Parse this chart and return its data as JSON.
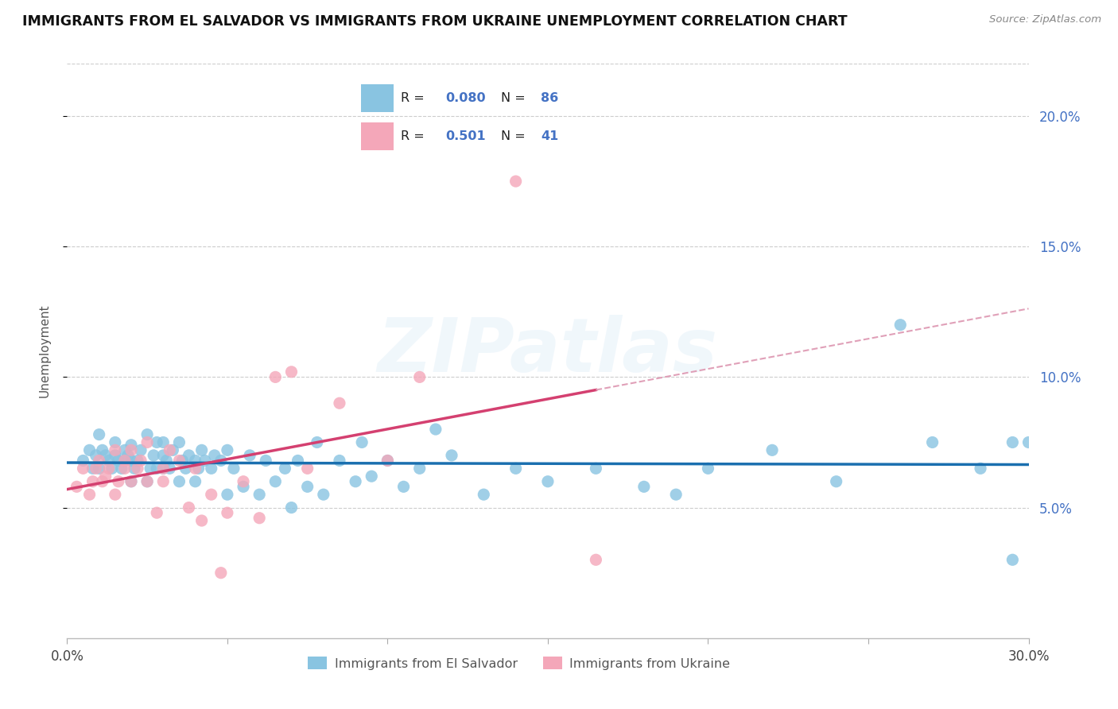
{
  "title": "IMMIGRANTS FROM EL SALVADOR VS IMMIGRANTS FROM UKRAINE UNEMPLOYMENT CORRELATION CHART",
  "source": "Source: ZipAtlas.com",
  "ylabel": "Unemployment",
  "xmin": 0.0,
  "xmax": 0.3,
  "ymin": 0.0,
  "ymax": 0.22,
  "yticks": [
    0.05,
    0.1,
    0.15,
    0.2
  ],
  "ytick_labels": [
    "5.0%",
    "10.0%",
    "15.0%",
    "20.0%"
  ],
  "xticks": [
    0.0,
    0.05,
    0.1,
    0.15,
    0.2,
    0.25,
    0.3
  ],
  "xtick_labels": [
    "0.0%",
    "",
    "",
    "",
    "",
    "",
    "30.0%"
  ],
  "legend_labels": [
    "Immigrants from El Salvador",
    "Immigrants from Ukraine"
  ],
  "el_salvador_R": "0.080",
  "el_salvador_N": "86",
  "ukraine_R": "0.501",
  "ukraine_N": "41",
  "color_salvador": "#89c4e1",
  "color_ukraine": "#f4a7b9",
  "color_salvador_line": "#1a6faf",
  "color_ukraine_line": "#d44070",
  "color_ukraine_line_ext": "#e0a0b8",
  "watermark": "ZIPatlas",
  "el_salvador_x": [
    0.005,
    0.007,
    0.008,
    0.009,
    0.01,
    0.01,
    0.011,
    0.012,
    0.013,
    0.014,
    0.015,
    0.015,
    0.016,
    0.017,
    0.018,
    0.018,
    0.019,
    0.02,
    0.02,
    0.02,
    0.021,
    0.022,
    0.023,
    0.025,
    0.025,
    0.026,
    0.027,
    0.028,
    0.028,
    0.03,
    0.03,
    0.03,
    0.031,
    0.032,
    0.033,
    0.035,
    0.035,
    0.036,
    0.037,
    0.038,
    0.04,
    0.04,
    0.041,
    0.042,
    0.043,
    0.045,
    0.046,
    0.048,
    0.05,
    0.05,
    0.052,
    0.055,
    0.057,
    0.06,
    0.062,
    0.065,
    0.068,
    0.07,
    0.072,
    0.075,
    0.078,
    0.08,
    0.085,
    0.09,
    0.092,
    0.095,
    0.1,
    0.105,
    0.11,
    0.115,
    0.12,
    0.13,
    0.14,
    0.15,
    0.165,
    0.18,
    0.19,
    0.2,
    0.22,
    0.24,
    0.26,
    0.27,
    0.285,
    0.295,
    0.295,
    0.3
  ],
  "el_salvador_y": [
    0.068,
    0.072,
    0.065,
    0.07,
    0.065,
    0.078,
    0.072,
    0.07,
    0.068,
    0.065,
    0.07,
    0.075,
    0.068,
    0.065,
    0.072,
    0.068,
    0.07,
    0.06,
    0.068,
    0.074,
    0.065,
    0.068,
    0.072,
    0.06,
    0.078,
    0.065,
    0.07,
    0.065,
    0.075,
    0.065,
    0.07,
    0.075,
    0.068,
    0.065,
    0.072,
    0.06,
    0.075,
    0.068,
    0.065,
    0.07,
    0.06,
    0.068,
    0.065,
    0.072,
    0.068,
    0.065,
    0.07,
    0.068,
    0.055,
    0.072,
    0.065,
    0.058,
    0.07,
    0.055,
    0.068,
    0.06,
    0.065,
    0.05,
    0.068,
    0.058,
    0.075,
    0.055,
    0.068,
    0.06,
    0.075,
    0.062,
    0.068,
    0.058,
    0.065,
    0.08,
    0.07,
    0.055,
    0.065,
    0.06,
    0.065,
    0.058,
    0.055,
    0.065,
    0.072,
    0.06,
    0.12,
    0.075,
    0.065,
    0.03,
    0.075,
    0.075
  ],
  "ukraine_x": [
    0.003,
    0.005,
    0.007,
    0.008,
    0.009,
    0.01,
    0.011,
    0.012,
    0.013,
    0.015,
    0.015,
    0.016,
    0.018,
    0.018,
    0.02,
    0.02,
    0.022,
    0.023,
    0.025,
    0.025,
    0.028,
    0.03,
    0.03,
    0.032,
    0.035,
    0.038,
    0.04,
    0.042,
    0.045,
    0.048,
    0.05,
    0.055,
    0.06,
    0.065,
    0.07,
    0.075,
    0.085,
    0.1,
    0.11,
    0.14,
    0.165
  ],
  "ukraine_y": [
    0.058,
    0.065,
    0.055,
    0.06,
    0.065,
    0.068,
    0.06,
    0.062,
    0.065,
    0.055,
    0.072,
    0.06,
    0.068,
    0.065,
    0.06,
    0.072,
    0.065,
    0.068,
    0.06,
    0.075,
    0.048,
    0.06,
    0.065,
    0.072,
    0.068,
    0.05,
    0.065,
    0.045,
    0.055,
    0.025,
    0.048,
    0.06,
    0.046,
    0.1,
    0.102,
    0.065,
    0.09,
    0.068,
    0.1,
    0.175,
    0.03
  ]
}
